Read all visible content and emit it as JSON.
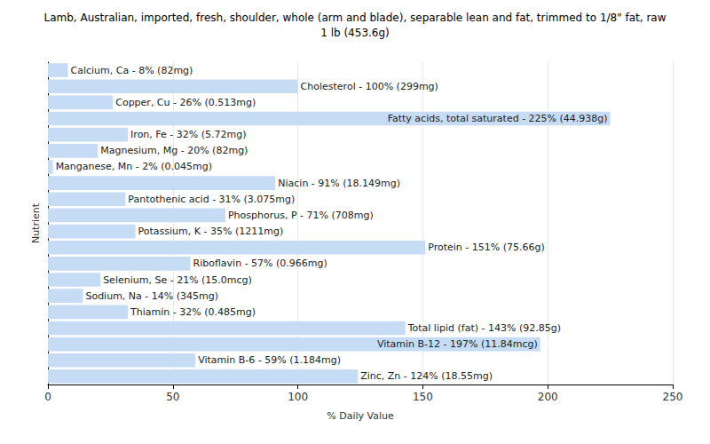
{
  "chart_data": {
    "type": "bar",
    "title": "Lamb, Australian, imported, fresh, shoulder, whole (arm and blade), separable lean and fat, trimmed to 1/8\" fat, raw\n1 lb (453.6g)",
    "x_label": "% Daily Value",
    "y_label": "Nutrient",
    "orientation": "horizontal",
    "categories": [
      "Calcium, Ca",
      "Cholesterol",
      "Copper, Cu",
      "Fatty acids, total saturated",
      "Iron, Fe",
      "Magnesium, Mg",
      "Manganese, Mn",
      "Niacin",
      "Pantothenic acid",
      "Phosphorus, P",
      "Potassium, K",
      "Protein",
      "Riboflavin",
      "Selenium, Se",
      "Sodium, Na",
      "Thiamin",
      "Total lipid (fat)",
      "Vitamin B-12",
      "Vitamin B-6",
      "Zinc, Zn"
    ],
    "values": [
      8,
      100,
      26,
      225,
      32,
      20,
      2,
      91,
      31,
      71,
      35,
      151,
      57,
      21,
      14,
      32,
      143,
      197,
      59,
      124
    ],
    "value_labels": [
      "Calcium, Ca - 8% (82mg)",
      "Cholesterol - 100% (299mg)",
      "Copper, Cu - 26% (0.513mg)",
      "Fatty acids, total saturated - 225% (44.938g)",
      "Iron, Fe - 32% (5.72mg)",
      "Magnesium, Mg - 20% (82mg)",
      "Manganese, Mn - 2% (0.045mg)",
      "Niacin - 91% (18.149mg)",
      "Pantothenic acid - 31% (3.075mg)",
      "Phosphorus, P - 71% (708mg)",
      "Potassium, K - 35% (1211mg)",
      "Protein - 151% (75.66g)",
      "Riboflavin - 57% (0.966mg)",
      "Selenium, Se - 21% (15.0mcg)",
      "Sodium, Na - 14% (345mg)",
      "Thiamin - 32% (0.485mg)",
      "Total lipid (fat) - 143% (92.85g)",
      "Vitamin B-12 - 197% (11.84mcg)",
      "Vitamin B-6 - 59% (1.184mg)",
      "Zinc, Zn - 124% (18.55mg)"
    ],
    "color": "#c6dcf5",
    "xlim": [
      0,
      250
    ],
    "xticks": [
      0,
      50,
      100,
      150,
      200,
      250
    ],
    "data_labels": true,
    "tick_labels": "x",
    "grid": true
  }
}
